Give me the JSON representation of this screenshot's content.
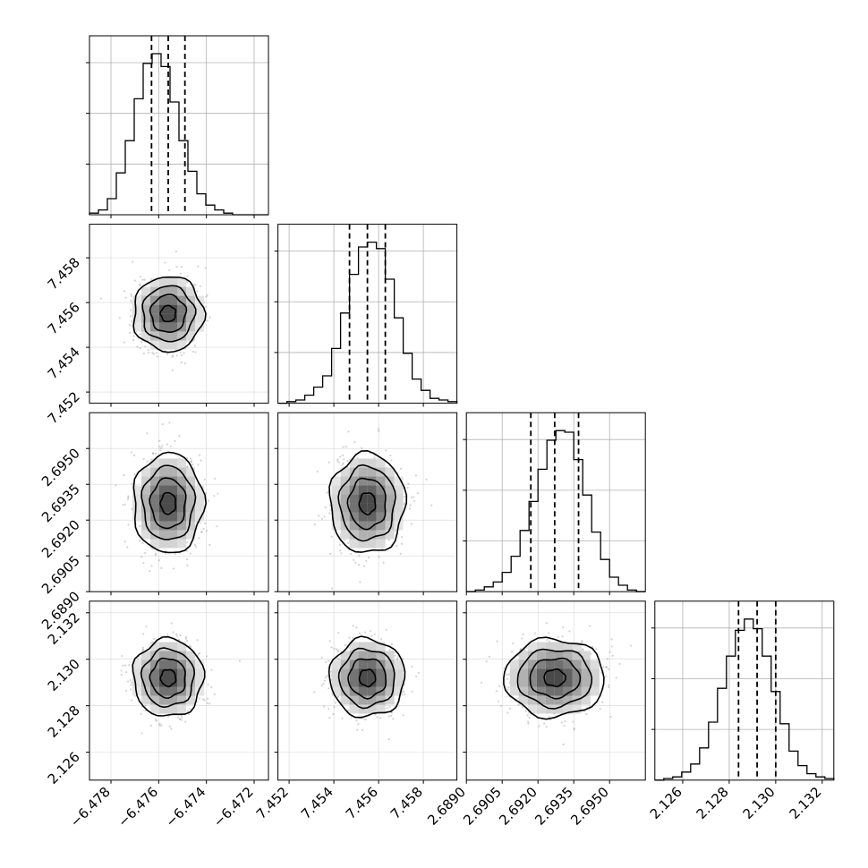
{
  "chart_data": {
    "type": "corner",
    "parameters": [
      {
        "range": [
          -6.4789,
          -6.4714
        ],
        "ticks": [
          "−6.478",
          "−6.476",
          "−6.474",
          "−6.472"
        ],
        "tick_values": [
          -6.478,
          -6.476,
          -6.474,
          -6.472
        ],
        "quantiles": [
          -6.4763,
          -6.4756,
          -6.4749
        ],
        "histogram": [
          0.01,
          0.03,
          0.1,
          0.26,
          0.46,
          0.72,
          0.94,
          1.0,
          0.92,
          0.7,
          0.46,
          0.27,
          0.13,
          0.06,
          0.03,
          0.01,
          0,
          0,
          0,
          0
        ]
      },
      {
        "range": [
          7.4515,
          7.4595
        ],
        "ticks": [
          "7.452",
          "7.454",
          "7.456",
          "7.458"
        ],
        "tick_values": [
          7.452,
          7.454,
          7.456,
          7.458
        ],
        "quantiles": [
          7.4547,
          7.4555,
          7.4563
        ],
        "histogram": [
          0,
          0.01,
          0.02,
          0.05,
          0.1,
          0.17,
          0.34,
          0.56,
          0.8,
          0.97,
          1.0,
          0.96,
          0.77,
          0.53,
          0.31,
          0.15,
          0.08,
          0.03,
          0.02,
          0.01
        ]
      },
      {
        "range": [
          2.689,
          2.6965
        ],
        "ticks": [
          "2.6890",
          "2.6905",
          "2.6920",
          "2.6935",
          "2.6950"
        ],
        "tick_values": [
          2.689,
          2.6905,
          2.692,
          2.6935,
          2.695
        ],
        "quantiles": [
          2.6917,
          2.6927,
          2.6937
        ],
        "histogram": [
          0,
          0.01,
          0.03,
          0.06,
          0.12,
          0.22,
          0.38,
          0.56,
          0.76,
          0.94,
          1.0,
          0.99,
          0.82,
          0.6,
          0.37,
          0.2,
          0.09,
          0.04,
          0.01,
          0
        ]
      },
      {
        "range": [
          2.1248,
          2.1325
        ],
        "ticks": [
          "2.126",
          "2.128",
          "2.130",
          "2.132"
        ],
        "tick_values": [
          2.126,
          2.128,
          2.13,
          2.132
        ],
        "quantiles": [
          2.1284,
          2.1292,
          2.13
        ],
        "histogram": [
          0,
          0.01,
          0.02,
          0.05,
          0.1,
          0.2,
          0.36,
          0.57,
          0.77,
          0.93,
          1.0,
          0.94,
          0.77,
          0.55,
          0.35,
          0.18,
          0.09,
          0.04,
          0.02,
          0.01
        ]
      }
    ],
    "histogram_y_ticks": 3,
    "contour_levels": [
      "0.5σ",
      "1σ",
      "1.5σ",
      "2σ"
    ],
    "quantile_line_style": "dashed",
    "grid": true,
    "colors": {
      "line": "#000000",
      "grid": "#b0b0b0",
      "points": "#808080"
    }
  }
}
